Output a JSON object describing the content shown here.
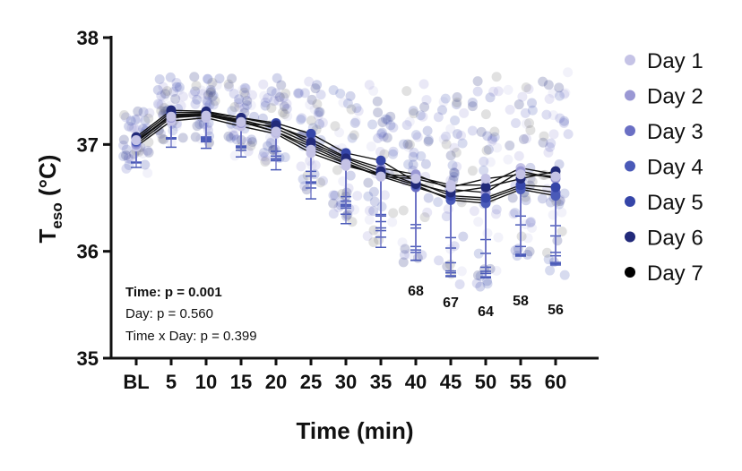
{
  "chart_data": {
    "type": "line",
    "title": "",
    "ylabel_main": "T",
    "ylabel_sub": "eso",
    "ylabel_unit": " (°C)",
    "xlabel": "Time (min)",
    "ylim": [
      35,
      38
    ],
    "yticks": [
      "35",
      "36",
      "37",
      "38"
    ],
    "categories": [
      "BL",
      "5",
      "10",
      "15",
      "20",
      "25",
      "30",
      "35",
      "40",
      "45",
      "50",
      "55",
      "60"
    ],
    "sd": [
      0.25,
      0.28,
      0.3,
      0.32,
      0.35,
      0.45,
      0.55,
      0.65,
      0.75,
      0.82,
      0.85,
      0.75,
      0.8
    ],
    "series": [
      {
        "name": "Day 1",
        "color": "#c5c3e6",
        "values": [
          36.98,
          37.22,
          37.25,
          37.17,
          37.1,
          36.92,
          36.8,
          36.72,
          36.7,
          36.62,
          36.62,
          36.78,
          36.72
        ]
      },
      {
        "name": "Day 2",
        "color": "#9a98d4",
        "values": [
          37.0,
          37.25,
          37.27,
          37.2,
          37.17,
          37.05,
          36.88,
          36.78,
          36.72,
          36.58,
          36.55,
          36.75,
          36.68
        ]
      },
      {
        "name": "Day 3",
        "color": "#6a6fc4",
        "values": [
          37.02,
          37.27,
          37.28,
          37.22,
          37.12,
          36.98,
          36.83,
          36.7,
          36.6,
          36.5,
          36.48,
          36.6,
          36.55
        ]
      },
      {
        "name": "Day 4",
        "color": "#4a5ab8",
        "values": [
          37.03,
          37.28,
          37.29,
          37.23,
          37.15,
          37.0,
          36.85,
          36.72,
          36.62,
          36.48,
          36.45,
          36.58,
          36.52
        ]
      },
      {
        "name": "Day 5",
        "color": "#3545a8",
        "values": [
          37.05,
          37.3,
          37.3,
          37.25,
          37.2,
          37.1,
          36.92,
          36.85,
          36.65,
          36.52,
          36.5,
          36.62,
          36.6
        ]
      },
      {
        "name": "Day 6",
        "color": "#222a7a",
        "values": [
          37.07,
          37.32,
          37.31,
          37.25,
          37.18,
          37.02,
          36.87,
          36.75,
          36.63,
          36.55,
          36.6,
          36.68,
          36.75
        ]
      },
      {
        "name": "Day 7",
        "color": "#000000",
        "values": [
          37.04,
          37.26,
          37.27,
          37.21,
          37.12,
          36.95,
          36.82,
          36.7,
          36.68,
          36.6,
          36.68,
          36.72,
          36.7
        ]
      }
    ],
    "n_annotations": [
      {
        "category": "40",
        "text": "68"
      },
      {
        "category": "45",
        "text": "67"
      },
      {
        "category": "50",
        "text": "64"
      },
      {
        "category": "55",
        "text": "58"
      },
      {
        "category": "60",
        "text": "56"
      }
    ],
    "stats": {
      "time": "Time: p = 0.001",
      "day": "Day: p = 0.560",
      "interaction": "Time x Day: p = 0.399"
    },
    "legend_position": "right"
  }
}
